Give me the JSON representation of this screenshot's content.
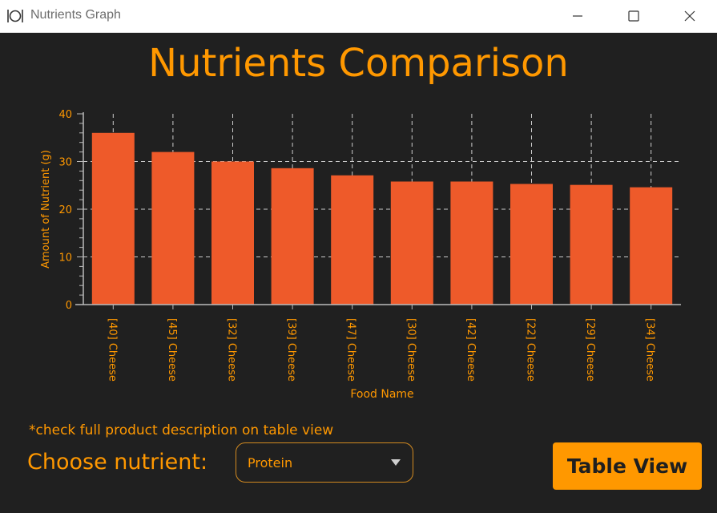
{
  "window": {
    "title": "Nutrients Graph",
    "icon": "plate-cutlery-icon"
  },
  "header": {
    "title": "Nutrients Comparison"
  },
  "chart_data": {
    "type": "bar",
    "categories": [
      "[40] Cheese",
      "[45] Cheese",
      "[32] Cheese",
      "[39] Cheese",
      "[47] Cheese",
      "[30] Cheese",
      "[42] Cheese",
      "[22] Cheese",
      "[29] Cheese",
      "[34] Cheese"
    ],
    "values": [
      36,
      32,
      30,
      28.6,
      27.1,
      25.8,
      25.8,
      25.3,
      25.1,
      24.6
    ],
    "xlabel": "Food Name",
    "ylabel": "Amount of Nutrient (g)",
    "ylim": [
      0,
      40
    ],
    "yticks": [
      "0",
      "10",
      "20",
      "30",
      "40"
    ],
    "grid": true,
    "colors": {
      "bar": "#ee5a2a",
      "axis_text": "#ff9800",
      "grid": "#cccccc"
    }
  },
  "footer": {
    "note": "*check full product description on table view",
    "choose_label": "Choose nutrient:",
    "dropdown_value": "Protein",
    "table_button": "Table View"
  },
  "colors": {
    "accent": "#ff9800",
    "background": "#202020"
  }
}
